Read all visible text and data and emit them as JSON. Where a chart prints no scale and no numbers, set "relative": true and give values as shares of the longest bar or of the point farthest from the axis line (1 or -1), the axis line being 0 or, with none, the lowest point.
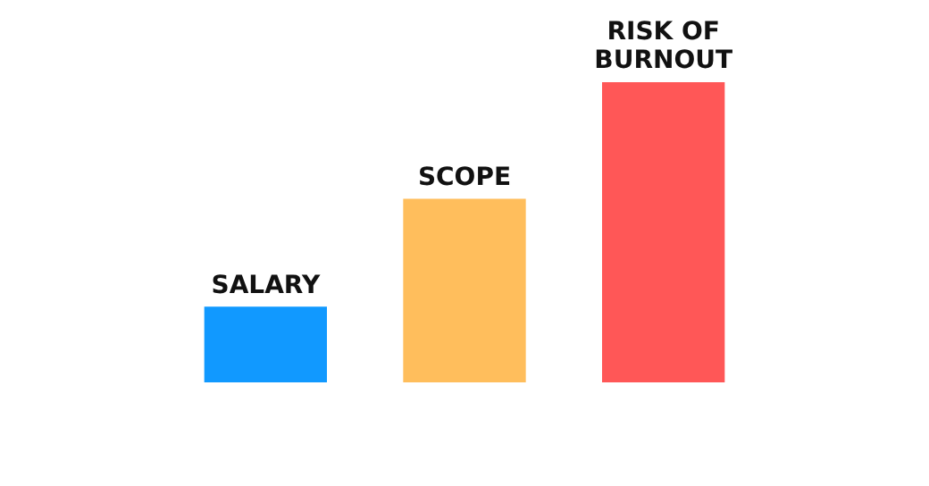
{
  "chart_data": {
    "type": "bar",
    "relative": true,
    "categories": [
      "SALARY",
      "SCOPE",
      "RISK OF BURNOUT"
    ],
    "values": [
      0.25,
      0.61,
      1
    ],
    "colors": [
      "#1199ff",
      "#ffbe5c",
      "#ff5757"
    ]
  }
}
